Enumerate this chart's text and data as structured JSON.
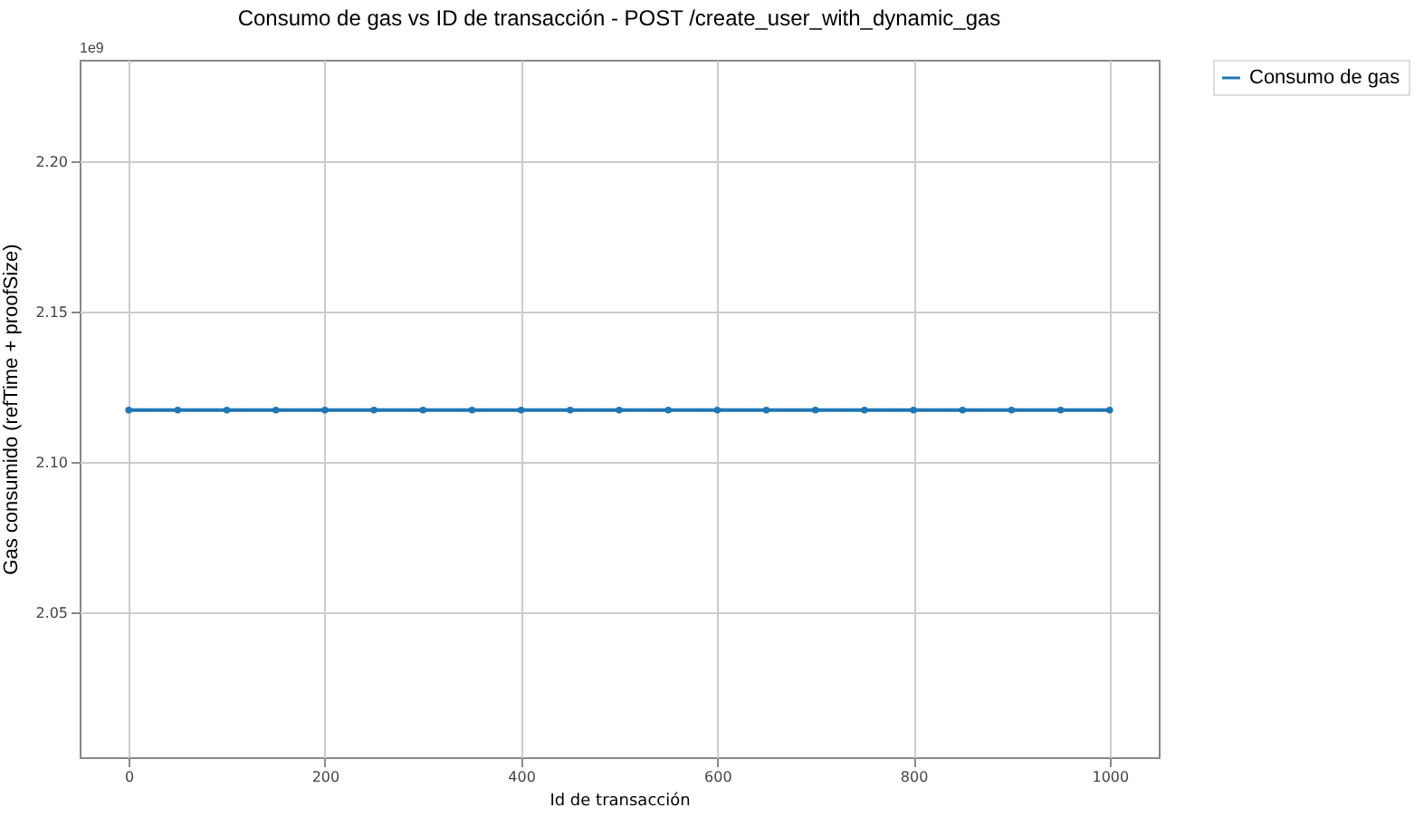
{
  "chart_data": {
    "type": "line",
    "title": "Consumo de gas vs ID de transacción - POST /create_user_with_dynamic_gas",
    "xlabel": "Id de transacción",
    "ylabel": "Gas consumido (refTime + proofSize)",
    "annotations": [
      "1e9"
    ],
    "x": [
      0,
      50,
      100,
      150,
      200,
      250,
      300,
      350,
      400,
      450,
      500,
      550,
      600,
      650,
      700,
      750,
      800,
      850,
      900,
      950,
      1000
    ],
    "series": [
      {
        "name": "Consumo de gas",
        "color": "#1f77b4",
        "values": [
          2.1175,
          2.1175,
          2.1175,
          2.1175,
          2.1175,
          2.1175,
          2.1175,
          2.1175,
          2.1175,
          2.1175,
          2.1175,
          2.1175,
          2.1175,
          2.1175,
          2.1175,
          2.1175,
          2.1175,
          2.1175,
          2.1175,
          2.1175,
          2.1175
        ]
      }
    ],
    "xlim": [
      -50,
      1050
    ],
    "xticks": [
      0,
      200,
      400,
      600,
      800,
      1000
    ],
    "ylim": [
      2.002,
      2.234
    ],
    "yticks": [
      {
        "value": 2.05,
        "label": "2.05"
      },
      {
        "value": 2.1,
        "label": "2.10"
      },
      {
        "value": 2.15,
        "label": "2.15"
      },
      {
        "value": 2.2,
        "label": "2.20"
      }
    ],
    "grid": true,
    "legend": "top right",
    "marker": "circle",
    "line_style": "solid"
  }
}
